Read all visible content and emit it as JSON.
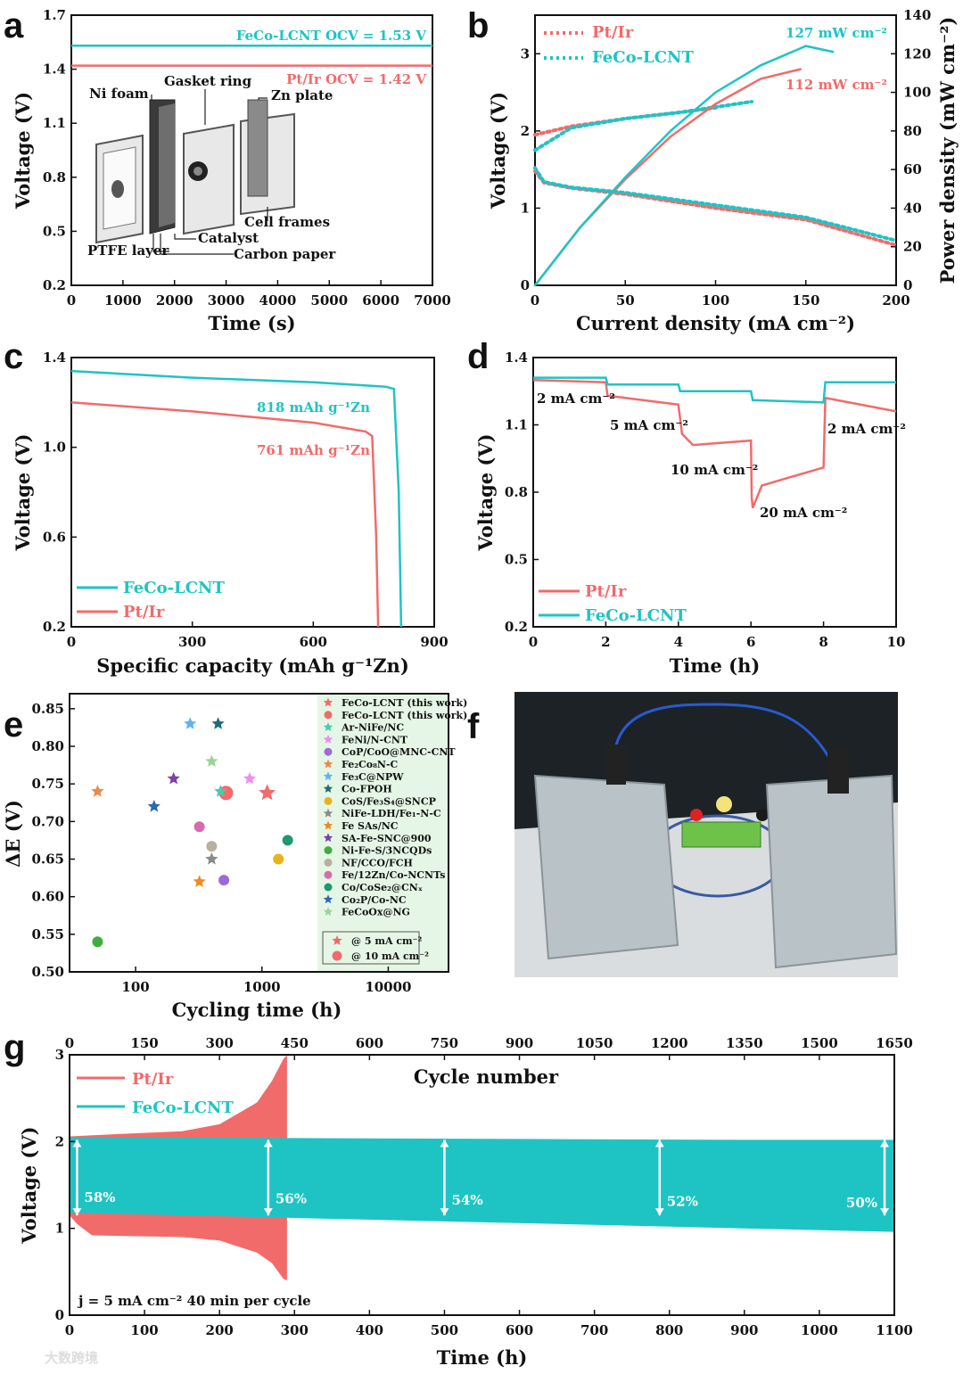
{
  "colors": {
    "pt": "#f16b6b",
    "feco": "#1ec4c4",
    "legend_bg": "#e6f6e6"
  },
  "watermark": "大数跨境",
  "chart_data": [
    {
      "id": "a",
      "type": "line",
      "panel_label": "a",
      "xlabel": "Time (s)",
      "ylabel": "Voltage (V)",
      "xlim": [
        0,
        7000
      ],
      "ylim": [
        0.2,
        1.7
      ],
      "xticks": [
        "0",
        "1000",
        "2000",
        "3000",
        "4000",
        "5000",
        "6000",
        "7000"
      ],
      "yticks": [
        "0.2",
        "0.5",
        "0.8",
        "1.1",
        "1.4",
        "1.7"
      ],
      "series": [
        {
          "name": "FeCo-LCNT",
          "values": [
            1.53,
            1.53,
            1.53,
            1.53
          ]
        },
        {
          "name": "Pt/Ir",
          "values": [
            1.42,
            1.42,
            1.42,
            1.42
          ]
        }
      ],
      "x": [
        0,
        2000,
        5000,
        7000
      ],
      "annotations": {
        "feco": "FeCo-LCNT   OCV = 1.53 V",
        "pt": "Pt/Ir   OCV = 1.42 V"
      },
      "inset_labels": [
        "Ni foam",
        "Gasket ring",
        "Zn plate",
        "Cell frames",
        "Catalyst",
        "PTFE layer",
        "Carbon paper"
      ]
    },
    {
      "id": "b",
      "type": "line",
      "panel_label": "b",
      "xlabel": "Current density (mA cm⁻²)",
      "ylabel": "Voltage (V)",
      "y2label": "Power density (mW cm⁻²)",
      "xlim": [
        0,
        200
      ],
      "ylim": [
        0,
        3.5
      ],
      "y2lim": [
        0,
        140
      ],
      "xticks": [
        "0",
        "50",
        "100",
        "150",
        "200"
      ],
      "yticks": [
        "0",
        "1",
        "2",
        "3"
      ],
      "y2ticks": [
        "0",
        "20",
        "40",
        "60",
        "80",
        "100",
        "120",
        "140"
      ],
      "legend": [
        "Pt/Ir",
        "FeCo-LCNT"
      ],
      "series": [
        {
          "name": "Pt/Ir discharge",
          "x": [
            0,
            5,
            20,
            50,
            100,
            150,
            200
          ],
          "values": [
            1.48,
            1.33,
            1.26,
            1.18,
            1.0,
            0.85,
            0.52
          ]
        },
        {
          "name": "FeCo-LCNT discharge",
          "x": [
            0,
            5,
            20,
            50,
            100,
            150,
            200
          ],
          "values": [
            1.52,
            1.34,
            1.27,
            1.2,
            1.04,
            0.88,
            0.58
          ]
        },
        {
          "name": "Pt/Ir charge",
          "x": [
            0,
            20,
            50,
            80,
            100
          ],
          "values": [
            1.95,
            2.06,
            2.16,
            2.24,
            2.3
          ]
        },
        {
          "name": "FeCo-LCNT charge",
          "x": [
            0,
            20,
            50,
            80,
            120
          ],
          "values": [
            1.75,
            2.04,
            2.16,
            2.24,
            2.38
          ]
        },
        {
          "name": "Pt/Ir power",
          "x": [
            0,
            25,
            50,
            75,
            100,
            125,
            147
          ],
          "values": [
            0,
            30,
            55,
            77,
            94,
            107,
            112
          ]
        },
        {
          "name": "FeCo-LCNT power",
          "x": [
            0,
            25,
            50,
            75,
            100,
            125,
            150,
            165
          ],
          "values": [
            0,
            30,
            56,
            80,
            100,
            114,
            124,
            121
          ]
        }
      ],
      "annotations": {
        "feco_peak": "127 mW cm⁻²",
        "pt_peak": "112 mW cm⁻²"
      }
    },
    {
      "id": "c",
      "type": "line",
      "panel_label": "c",
      "xlabel": "Specific capacity (mAh g⁻¹Zn)",
      "ylabel": "Voltage (V)",
      "xlim": [
        0,
        900
      ],
      "ylim": [
        0.2,
        1.4
      ],
      "xticks": [
        "0",
        "300",
        "600",
        "900"
      ],
      "yticks": [
        "0.2",
        "0.6",
        "1.0",
        "1.4"
      ],
      "legend": [
        "FeCo-LCNT",
        "Pt/Ir"
      ],
      "series": [
        {
          "name": "FeCo-LCNT",
          "x": [
            0,
            300,
            600,
            780,
            800,
            812,
            818
          ],
          "values": [
            1.34,
            1.31,
            1.29,
            1.27,
            1.26,
            0.8,
            0.2
          ]
        },
        {
          "name": "Pt/Ir",
          "x": [
            0,
            300,
            600,
            730,
            746,
            756,
            761
          ],
          "values": [
            1.2,
            1.16,
            1.11,
            1.07,
            1.05,
            0.6,
            0.2
          ]
        }
      ],
      "annotations": {
        "feco": "818 mAh g⁻¹Zn",
        "pt": "761 mAh g⁻¹Zn"
      }
    },
    {
      "id": "d",
      "type": "line",
      "panel_label": "d",
      "xlabel": "Time (h)",
      "ylabel": "Voltage (V)",
      "xlim": [
        0,
        10
      ],
      "ylim": [
        0.2,
        1.4
      ],
      "xticks": [
        "0",
        "2",
        "4",
        "6",
        "8",
        "10"
      ],
      "yticks": [
        "0.2",
        "0.5",
        "0.8",
        "1.1",
        "1.4"
      ],
      "legend": [
        "Pt/Ir",
        "FeCo-LCNT"
      ],
      "series": [
        {
          "name": "Pt/Ir",
          "x": [
            0,
            2,
            2.05,
            4,
            4.1,
            4.4,
            6,
            6.02,
            6.05,
            6.3,
            8,
            8.05,
            10
          ],
          "values": [
            1.3,
            1.29,
            1.23,
            1.19,
            1.06,
            1.01,
            1.03,
            0.78,
            0.73,
            0.83,
            0.91,
            1.22,
            1.16
          ]
        },
        {
          "name": "FeCo-LCNT",
          "x": [
            0,
            2,
            2.05,
            4,
            4.05,
            6,
            6.05,
            8,
            8.05,
            10
          ],
          "values": [
            1.31,
            1.31,
            1.28,
            1.28,
            1.25,
            1.25,
            1.21,
            1.2,
            1.29,
            1.29
          ]
        }
      ],
      "annotations": [
        "2 mA cm⁻²",
        "5 mA cm⁻²",
        "10 mA cm⁻²",
        "20 mA cm⁻²",
        "2 mA cm⁻²"
      ]
    },
    {
      "id": "e",
      "type": "scatter",
      "panel_label": "e",
      "xlabel": "Cycling time (h)",
      "ylabel": "ΔE (V)",
      "xscale": "log",
      "xlim": [
        30,
        30000
      ],
      "ylim": [
        0.5,
        0.87
      ],
      "xticks": [
        "100",
        "1000",
        "10000"
      ],
      "yticks": [
        "0.50",
        "0.55",
        "0.60",
        "0.65",
        "0.70",
        "0.75",
        "0.80",
        "0.85"
      ],
      "legend": [
        {
          "label": "FeCo-LCNT (this work)",
          "marker": "star",
          "color": "#f16b6b"
        },
        {
          "label": "FeCo-LCNT (this work)",
          "marker": "circle",
          "color": "#f16b6b"
        },
        {
          "label": "Ar-NiFe/NC",
          "marker": "star",
          "color": "#4fc9b0"
        },
        {
          "label": "FeNi/N-CNT",
          "marker": "star",
          "color": "#f08cf0"
        },
        {
          "label": "CoP/CoO@MNC-CNT",
          "marker": "circle",
          "color": "#9b6bd6"
        },
        {
          "label": "Fe₂Co₈N-C",
          "marker": "star",
          "color": "#e88a4d"
        },
        {
          "label": "Fe₃C@NPW",
          "marker": "star",
          "color": "#5fb4f0"
        },
        {
          "label": "Co-FPOH",
          "marker": "star",
          "color": "#1d6e76"
        },
        {
          "label": "CoS/Fe₃S₄@SNCP",
          "marker": "circle",
          "color": "#e8b21c"
        },
        {
          "label": "NiFe-LDH/Fe₁-N-C",
          "marker": "star",
          "color": "#8a8a8a"
        },
        {
          "label": "Fe SAs/NC",
          "marker": "star",
          "color": "#f08a1c"
        },
        {
          "label": "SA-Fe-SNC@900",
          "marker": "star",
          "color": "#7d3fa8"
        },
        {
          "label": "Ni-Fe-S/3NCQDs",
          "marker": "circle",
          "color": "#3fae3f"
        },
        {
          "label": "NF/CCO/FCH",
          "marker": "circle",
          "color": "#b8b09c"
        },
        {
          "label": "Fe/12Zn/Co-NCNTs",
          "marker": "circle",
          "color": "#d66bb0"
        },
        {
          "label": "Co/CoSe₂@CNₓ",
          "marker": "circle",
          "color": "#1a9a6e"
        },
        {
          "label": "Co₂P/Co-NC",
          "marker": "star",
          "color": "#2a6ab0"
        },
        {
          "label": "FeCoOx@NG",
          "marker": "star",
          "color": "#9ad49a"
        }
      ],
      "legend_extra": [
        "@ 5 mA cm⁻²",
        "@ 10 mA cm⁻²"
      ],
      "points": [
        {
          "x": 1100,
          "y": 0.738,
          "marker": "star",
          "color": "#f16b6b"
        },
        {
          "x": 520,
          "y": 0.738,
          "marker": "circle",
          "color": "#f16b6b"
        },
        {
          "x": 50,
          "y": 0.74,
          "marker": "star",
          "color": "#e88a4d"
        },
        {
          "x": 270,
          "y": 0.83,
          "marker": "star",
          "color": "#5fb4f0"
        },
        {
          "x": 450,
          "y": 0.83,
          "marker": "star",
          "color": "#1d6e76"
        },
        {
          "x": 400,
          "y": 0.78,
          "marker": "star",
          "color": "#9ad49a"
        },
        {
          "x": 200,
          "y": 0.757,
          "marker": "star",
          "color": "#7d3fa8"
        },
        {
          "x": 800,
          "y": 0.757,
          "marker": "star",
          "color": "#f08cf0"
        },
        {
          "x": 470,
          "y": 0.74,
          "marker": "star",
          "color": "#4fc9b0"
        },
        {
          "x": 140,
          "y": 0.72,
          "marker": "star",
          "color": "#2a6ab0"
        },
        {
          "x": 320,
          "y": 0.693,
          "marker": "circle",
          "color": "#d66bb0"
        },
        {
          "x": 400,
          "y": 0.667,
          "marker": "circle",
          "color": "#b8b09c"
        },
        {
          "x": 400,
          "y": 0.65,
          "marker": "star",
          "color": "#8a8a8a"
        },
        {
          "x": 1600,
          "y": 0.675,
          "marker": "circle",
          "color": "#1a9a6e"
        },
        {
          "x": 1350,
          "y": 0.65,
          "marker": "circle",
          "color": "#e8b21c"
        },
        {
          "x": 320,
          "y": 0.62,
          "marker": "star",
          "color": "#f08a1c"
        },
        {
          "x": 500,
          "y": 0.622,
          "marker": "circle",
          "color": "#9b6bd6"
        },
        {
          "x": 50,
          "y": 0.54,
          "marker": "circle",
          "color": "#3fae3f"
        }
      ]
    },
    {
      "id": "g",
      "type": "area",
      "panel_label": "g",
      "xlabel": "Time (h)",
      "ylabel": "Voltage (V)",
      "x2label": "Cycle number",
      "xlim": [
        0,
        1100
      ],
      "ylim": [
        0,
        3
      ],
      "xticks": [
        "0",
        "100",
        "200",
        "300",
        "400",
        "500",
        "600",
        "700",
        "800",
        "900",
        "1000",
        "1100"
      ],
      "x2ticks": [
        "0",
        "150",
        "300",
        "450",
        "600",
        "750",
        "900",
        "1050",
        "1200",
        "1350",
        "1500",
        "1650"
      ],
      "yticks": [
        "0",
        "1",
        "2",
        "3"
      ],
      "legend": [
        "Pt/Ir",
        "FeCo-LCNT"
      ],
      "series": [
        {
          "name": "Pt/Ir charge",
          "x": [
            0,
            50,
            150,
            200,
            250,
            270,
            285,
            290
          ],
          "values": [
            2.06,
            2.08,
            2.12,
            2.2,
            2.45,
            2.7,
            2.95,
            3.0
          ]
        },
        {
          "name": "Pt/Ir discharge",
          "x": [
            0,
            10,
            30,
            150,
            200,
            250,
            270,
            285,
            290
          ],
          "values": [
            1.15,
            1.05,
            0.92,
            0.9,
            0.86,
            0.72,
            0.6,
            0.42,
            0.4
          ]
        },
        {
          "name": "FeCo-LCNT charge",
          "x": [
            0,
            300,
            600,
            900,
            1100
          ],
          "values": [
            2.05,
            2.04,
            2.03,
            2.02,
            2.02
          ]
        },
        {
          "name": "FeCo-LCNT discharge",
          "x": [
            0,
            300,
            600,
            900,
            1100
          ],
          "values": [
            1.18,
            1.12,
            1.06,
            1.0,
            0.96
          ]
        }
      ],
      "efficiency_marks": [
        {
          "x": 10,
          "label": "58%"
        },
        {
          "x": 265,
          "label": "56%"
        },
        {
          "x": 500,
          "label": "54%"
        },
        {
          "x": 787,
          "label": "52%"
        },
        {
          "x": 1087,
          "label": "50%"
        }
      ],
      "annotation": "j = 5 mA cm⁻²   40 min per cycle"
    }
  ],
  "panel_f": {
    "label": "f"
  }
}
